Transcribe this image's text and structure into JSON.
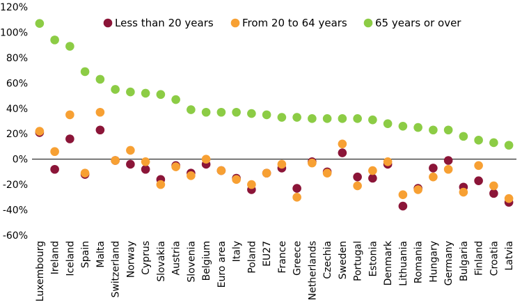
{
  "chart_data": {
    "type": "scatter",
    "title": "",
    "xlabel": "",
    "ylabel": "",
    "ylim": [
      -60,
      120
    ],
    "yticks": [
      -60,
      -40,
      -20,
      0,
      20,
      40,
      60,
      80,
      100,
      120
    ],
    "ytick_format": "{v}%",
    "grid": false,
    "legend_position": "top",
    "categories": [
      "Luxembourg",
      "Ireland",
      "Iceland",
      "Spain",
      "Malta",
      "Switzerland",
      "Norway",
      "Cyprus",
      "Slovakia",
      "Austria",
      "Slovenia",
      "Belgium",
      "Euro area",
      "Italy",
      "Poland",
      "EU27",
      "France",
      "Greece",
      "Netherlands",
      "Czechia",
      "Sweden",
      "Portugal",
      "Estonia",
      "Denmark",
      "Lithuania",
      "Romania",
      "Hungary",
      "Germany",
      "Bulgaria",
      "Finland",
      "Croatia",
      "Latvia"
    ],
    "series": [
      {
        "name": "Less than 20 years",
        "color": "#8b1538",
        "values": [
          21,
          -8,
          16,
          -12,
          23,
          -1,
          -4,
          -8,
          -16,
          -5,
          -11,
          -4,
          -9,
          -15,
          -24,
          -11,
          -7,
          -23,
          -2,
          -10,
          5,
          -14,
          -15,
          -4,
          -37,
          -23,
          -7,
          -1,
          -22,
          -17,
          -27,
          -34
        ]
      },
      {
        "name": "From 20 to 64 years",
        "color": "#f7a033",
        "values": [
          22,
          6,
          35,
          -11,
          37,
          -1,
          7,
          -2,
          -20,
          -6,
          -13,
          0,
          -9,
          -16,
          -20,
          -11,
          -4,
          -30,
          -3,
          -11,
          12,
          -21,
          -9,
          -2,
          -28,
          -24,
          -14,
          -8,
          -26,
          -5,
          -21,
          -31
        ]
      },
      {
        "name": "65 years or over",
        "color": "#8ccc45",
        "values": [
          107,
          94,
          89,
          69,
          63,
          55,
          53,
          52,
          51,
          47,
          39,
          37,
          37,
          37,
          36,
          35,
          33,
          33,
          32,
          32,
          32,
          32,
          31,
          28,
          26,
          25,
          23,
          23,
          18,
          15,
          13,
          11
        ]
      }
    ]
  }
}
